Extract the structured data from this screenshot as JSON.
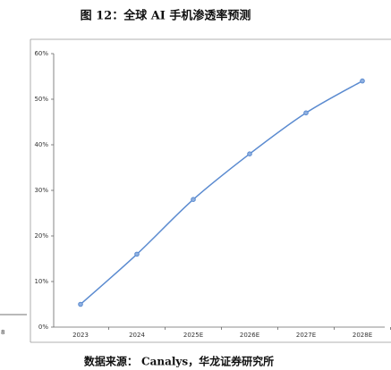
{
  "chart_data": {
    "type": "line",
    "title": "图 12：全球 AI 手机渗透率预测",
    "categories": [
      "2023",
      "2024",
      "2025E",
      "2026E",
      "2027E",
      "2028E"
    ],
    "series": [
      {
        "color": "#5b8bd0",
        "values": [
          5,
          16,
          28,
          38,
          47,
          54
        ]
      }
    ],
    "ylim": [
      0,
      60
    ],
    "yticks": [
      {
        "value": 0,
        "label": "0%"
      },
      {
        "value": 10,
        "label": "10%"
      },
      {
        "value": 20,
        "label": "20%"
      },
      {
        "value": 30,
        "label": "30%"
      },
      {
        "value": 40,
        "label": "40%"
      },
      {
        "value": 50,
        "label": "50%"
      },
      {
        "value": 60,
        "label": "60%"
      }
    ],
    "source": "数据来源： Canalys，华龙证券研究所"
  },
  "cropped_neighbor_label": "8"
}
